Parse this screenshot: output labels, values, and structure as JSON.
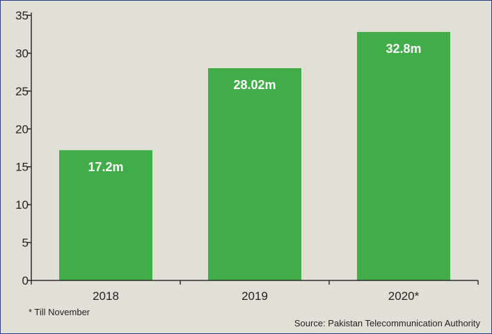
{
  "colors": {
    "background": "#e1e0d6",
    "bar": "#41ad49",
    "axis": "#2b2b2b",
    "border": "#2c3e86",
    "data_label": "#ffffff"
  },
  "footnote": "* Till November",
  "source": "Source: Pakistan Telecommunication Authority",
  "chart_data": {
    "type": "bar",
    "categories": [
      "2018",
      "2019",
      "2020*"
    ],
    "values": [
      17.2,
      28.02,
      32.8
    ],
    "data_labels": [
      "17.2m",
      "28.02m",
      "32.8m"
    ],
    "ylim": [
      0,
      35
    ],
    "yticks": [
      0,
      5,
      10,
      15,
      20,
      25,
      30,
      35
    ],
    "grid": false,
    "title": "",
    "xlabel": "",
    "ylabel": ""
  }
}
